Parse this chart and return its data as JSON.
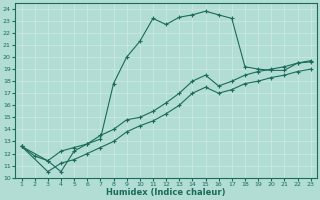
{
  "xlabel": "Humidex (Indice chaleur)",
  "ylabel": "",
  "bg_color": "#b2ddd4",
  "line_color": "#1a6b5a",
  "grid_color": "#c8e8e0",
  "xlim": [
    0.5,
    23.5
  ],
  "ylim": [
    10,
    24.5
  ],
  "xticks": [
    1,
    2,
    3,
    4,
    5,
    6,
    7,
    8,
    9,
    10,
    11,
    12,
    13,
    14,
    15,
    16,
    17,
    18,
    19,
    20,
    21,
    22,
    23
  ],
  "yticks": [
    10,
    11,
    12,
    13,
    14,
    15,
    16,
    17,
    18,
    19,
    20,
    21,
    22,
    23,
    24
  ],
  "curve1_x": [
    1,
    2,
    3,
    4,
    5,
    6,
    7,
    8,
    9,
    10,
    11,
    12,
    13,
    14,
    15,
    16,
    17,
    18,
    19,
    20,
    21,
    22,
    23
  ],
  "curve1_y": [
    12.6,
    11.8,
    11.4,
    10.5,
    12.2,
    12.8,
    13.2,
    17.8,
    20.0,
    21.3,
    23.2,
    22.7,
    23.3,
    23.5,
    23.8,
    23.5,
    23.2,
    19.2,
    19.0,
    18.9,
    18.9,
    19.5,
    19.6
  ],
  "curve2_x": [
    1,
    3,
    4,
    5,
    6,
    7,
    8,
    9,
    10,
    11,
    12,
    13,
    14,
    15,
    16,
    17,
    18,
    19,
    20,
    21,
    22,
    23
  ],
  "curve2_y": [
    12.6,
    11.4,
    12.2,
    12.5,
    12.8,
    13.5,
    14.0,
    14.8,
    15.0,
    15.5,
    16.2,
    17.0,
    18.0,
    18.5,
    17.6,
    18.0,
    18.5,
    18.8,
    19.0,
    19.2,
    19.5,
    19.7
  ],
  "curve3_x": [
    1,
    3,
    4,
    5,
    6,
    7,
    8,
    9,
    10,
    11,
    12,
    13,
    14,
    15,
    16,
    17,
    18,
    19,
    20,
    21,
    22,
    23
  ],
  "curve3_y": [
    12.6,
    10.5,
    11.2,
    11.5,
    12.0,
    12.5,
    13.0,
    13.8,
    14.3,
    14.7,
    15.3,
    16.0,
    17.0,
    17.5,
    17.0,
    17.3,
    17.8,
    18.0,
    18.3,
    18.5,
    18.8,
    19.0
  ]
}
